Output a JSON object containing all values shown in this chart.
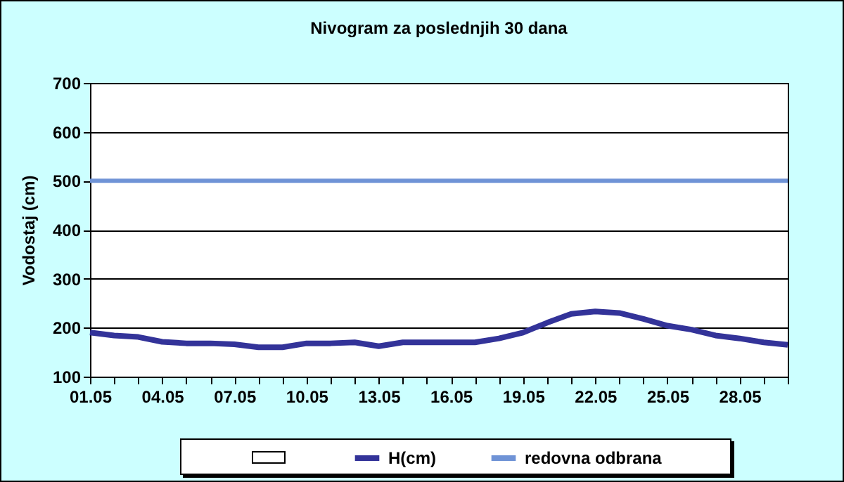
{
  "chart_data": {
    "type": "line",
    "title": "Nivogram za poslednjih 30 dana",
    "ylabel": "Vodostaj (cm)",
    "categories": [
      "01.05",
      null,
      null,
      "04.05",
      null,
      null,
      "07.05",
      null,
      null,
      "10.05",
      null,
      null,
      "13.05",
      null,
      null,
      "16.05",
      null,
      null,
      "19.05",
      null,
      null,
      "22.05",
      null,
      null,
      "25.05",
      null,
      null,
      "28.05",
      null,
      null
    ],
    "series": [
      {
        "name": "H(cm)",
        "color": "#333399",
        "values": [
          190,
          184,
          181,
          171,
          168,
          168,
          166,
          160,
          160,
          168,
          168,
          170,
          162,
          170,
          170,
          170,
          170,
          178,
          190,
          210,
          228,
          233,
          230,
          218,
          204,
          196,
          184,
          178,
          170,
          165
        ]
      }
    ],
    "ref_lines": [
      {
        "axis": "y",
        "value": 500,
        "label": "redovna odbrana",
        "color": "#6f93d6"
      }
    ],
    "ylim": [
      100,
      700
    ],
    "yticks": [
      100,
      200,
      300,
      400,
      500,
      600,
      700
    ],
    "grid": "y",
    "legend": "bottom",
    "marker": "none",
    "line_style": "solid"
  }
}
